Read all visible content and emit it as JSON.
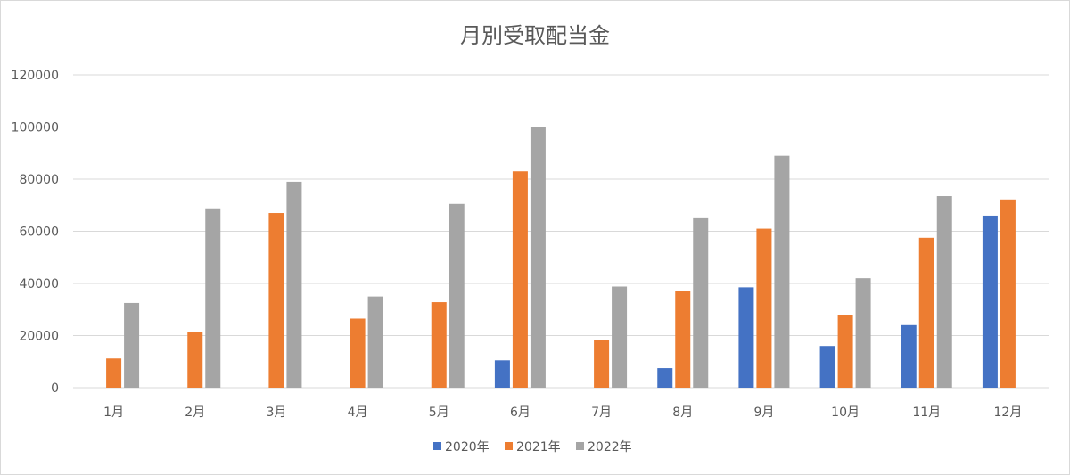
{
  "chart_data": {
    "type": "bar",
    "title": "月別受取配当金",
    "xlabel": "",
    "ylabel": "",
    "categories": [
      "1月",
      "2月",
      "3月",
      "4月",
      "5月",
      "6月",
      "7月",
      "8月",
      "9月",
      "10月",
      "11月",
      "12月"
    ],
    "series": [
      {
        "name": "2020年",
        "color": "#4472c4",
        "values": [
          0,
          0,
          0,
          0,
          0,
          10500,
          0,
          7500,
          38500,
          16000,
          24000,
          66000
        ]
      },
      {
        "name": "2021年",
        "color": "#ed7d31",
        "values": [
          11200,
          21200,
          67000,
          26500,
          32800,
          83000,
          18200,
          37000,
          61000,
          28000,
          57500,
          72200
        ]
      },
      {
        "name": "2022年",
        "color": "#a5a5a5",
        "values": [
          32500,
          68800,
          79000,
          35000,
          70500,
          100000,
          38800,
          65000,
          89000,
          42000,
          73500,
          null
        ]
      }
    ],
    "ylim": [
      0,
      120000
    ],
    "yticks": [
      0,
      20000,
      40000,
      60000,
      80000,
      100000,
      120000
    ],
    "grid": true,
    "legend_position": "bottom"
  }
}
